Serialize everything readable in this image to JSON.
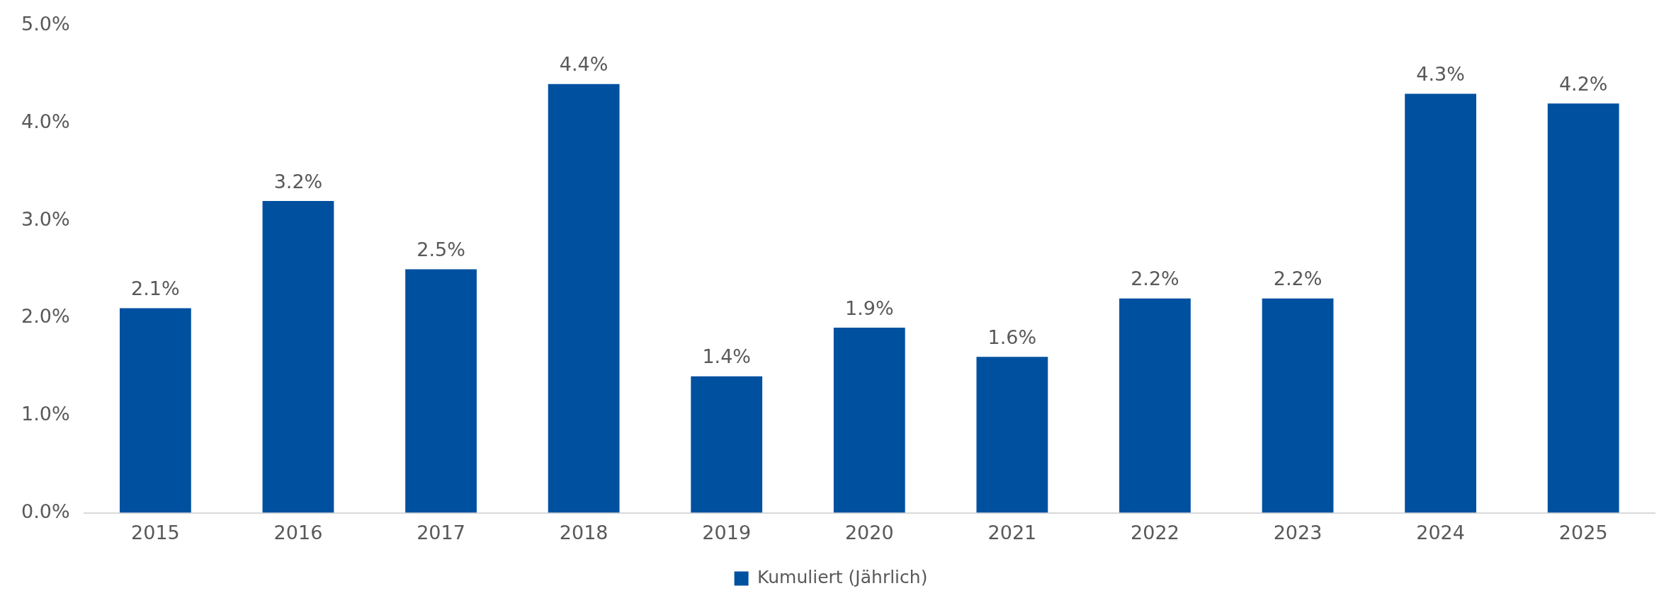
{
  "chart_data": {
    "type": "bar",
    "categories": [
      "2015",
      "2016",
      "2017",
      "2018",
      "2019",
      "2020",
      "2021",
      "2022",
      "2023",
      "2024",
      "2025"
    ],
    "series": [
      {
        "name": "Kumuliert (Jährlich)",
        "color": "#0050a0",
        "values": [
          2.1,
          3.2,
          2.5,
          4.4,
          1.4,
          1.9,
          1.6,
          2.2,
          2.2,
          4.3,
          4.2
        ],
        "value_labels": [
          "2.1%",
          "3.2%",
          "2.5%",
          "4.4%",
          "1.4%",
          "1.9%",
          "1.6%",
          "2.2%",
          "2.2%",
          "4.3%",
          "4.2%"
        ]
      }
    ],
    "ylim": [
      0,
      5
    ],
    "yticks": [
      {
        "value": 0,
        "label": "0.0%"
      },
      {
        "value": 1,
        "label": "1.0%"
      },
      {
        "value": 2,
        "label": "2.0%"
      },
      {
        "value": 3,
        "label": "3.0%"
      },
      {
        "value": 4,
        "label": "4.0%"
      },
      {
        "value": 5,
        "label": "5.0%"
      }
    ],
    "grid": false,
    "legend": "bottom"
  }
}
